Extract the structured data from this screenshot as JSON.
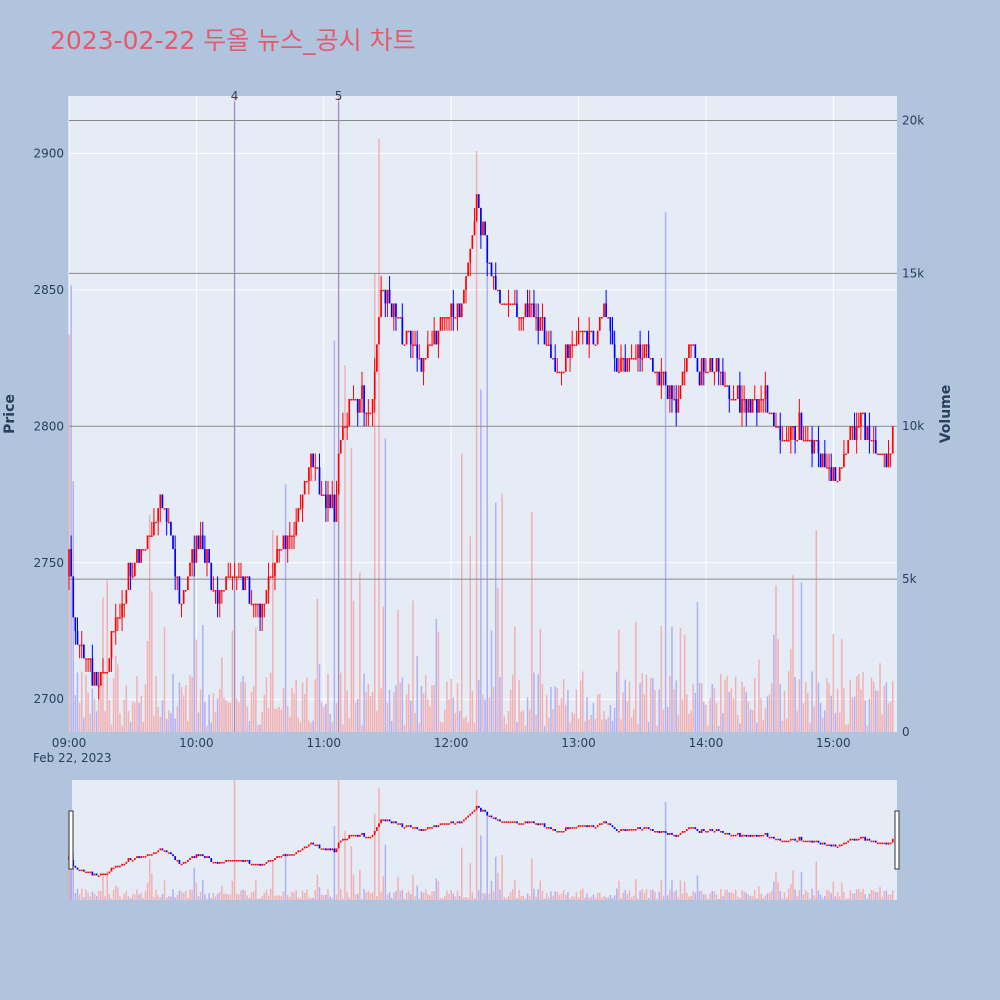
{
  "page": {
    "background": "#b0c4de",
    "plot_background": "#e5ecf6"
  },
  "chart_data": {
    "type": "candlestick",
    "title": "2023-02-22 두올 뉴스_공시 차트",
    "title_color": "#e8596a",
    "ylabel": "Price",
    "y2label": "Volume",
    "price_range": [
      2688,
      2921
    ],
    "volume_range": [
      0,
      20800
    ],
    "y_ticks": [
      "2700",
      "2750",
      "2800",
      "2850",
      "2900"
    ],
    "volume_ticks": [
      "0",
      "5k",
      "10k",
      "15k",
      "20k"
    ],
    "x_ticks": [
      "09:00",
      "10:00",
      "11:00",
      "12:00",
      "13:00",
      "14:00",
      "15:00"
    ],
    "x_date_label": "Feb 22, 2023",
    "time_range": [
      "09:00",
      "15:30"
    ],
    "hlines_volume": [
      5000,
      10000,
      15000,
      20000
    ],
    "news_markers": [
      {
        "label": "4",
        "time": "10:18"
      },
      {
        "label": "5",
        "time": "11:07"
      }
    ],
    "up_color": "#ff0000",
    "down_color": "#0000ff",
    "volume_up_color": "#f4a6a6",
    "volume_down_color": "#a6a6f4",
    "price_path": [
      [
        "09:00",
        2755
      ],
      [
        "09:02",
        2730
      ],
      [
        "09:05",
        2720
      ],
      [
        "09:10",
        2712
      ],
      [
        "09:13",
        2702
      ],
      [
        "09:18",
        2715
      ],
      [
        "09:23",
        2728
      ],
      [
        "09:28",
        2745
      ],
      [
        "09:33",
        2752
      ],
      [
        "09:38",
        2760
      ],
      [
        "09:44",
        2774
      ],
      [
        "09:48",
        2760
      ],
      [
        "09:52",
        2736
      ],
      [
        "09:58",
        2752
      ],
      [
        "10:02",
        2761
      ],
      [
        "10:06",
        2748
      ],
      [
        "10:10",
        2738
      ],
      [
        "10:15",
        2744
      ],
      [
        "10:20",
        2745
      ],
      [
        "10:25",
        2739
      ],
      [
        "10:30",
        2733
      ],
      [
        "10:35",
        2745
      ],
      [
        "10:40",
        2755
      ],
      [
        "10:45",
        2762
      ],
      [
        "10:50",
        2774
      ],
      [
        "10:55",
        2787
      ],
      [
        "11:00",
        2773
      ],
      [
        "11:05",
        2770
      ],
      [
        "11:08",
        2795
      ],
      [
        "11:12",
        2807
      ],
      [
        "11:17",
        2810
      ],
      [
        "11:22",
        2805
      ],
      [
        "11:27",
        2849
      ],
      [
        "11:32",
        2845
      ],
      [
        "11:37",
        2832
      ],
      [
        "11:42",
        2830
      ],
      [
        "11:47",
        2823
      ],
      [
        "11:52",
        2830
      ],
      [
        "11:57",
        2844
      ],
      [
        "12:02",
        2838
      ],
      [
        "12:07",
        2855
      ],
      [
        "12:12",
        2882
      ],
      [
        "12:17",
        2862
      ],
      [
        "12:22",
        2848
      ],
      [
        "12:27",
        2846
      ],
      [
        "12:32",
        2838
      ],
      [
        "12:37",
        2845
      ],
      [
        "12:42",
        2838
      ],
      [
        "12:47",
        2827
      ],
      [
        "12:52",
        2819
      ],
      [
        "12:57",
        2832
      ],
      [
        "13:02",
        2835
      ],
      [
        "13:07",
        2828
      ],
      [
        "13:12",
        2845
      ],
      [
        "13:17",
        2825
      ],
      [
        "13:22",
        2825
      ],
      [
        "13:27",
        2829
      ],
      [
        "13:32",
        2828
      ],
      [
        "13:37",
        2818
      ],
      [
        "13:42",
        2813
      ],
      [
        "13:47",
        2805
      ],
      [
        "13:52",
        2832
      ],
      [
        "13:57",
        2818
      ],
      [
        "14:02",
        2825
      ],
      [
        "14:07",
        2820
      ],
      [
        "14:12",
        2808
      ],
      [
        "14:17",
        2810
      ],
      [
        "14:22",
        2808
      ],
      [
        "14:27",
        2812
      ],
      [
        "14:32",
        2800
      ],
      [
        "14:37",
        2795
      ],
      [
        "14:42",
        2798
      ],
      [
        "14:47",
        2800
      ],
      [
        "14:52",
        2790
      ],
      [
        "14:57",
        2785
      ],
      [
        "15:02",
        2782
      ],
      [
        "15:07",
        2795
      ],
      [
        "15:12",
        2803
      ],
      [
        "15:17",
        2796
      ],
      [
        "15:22",
        2790
      ],
      [
        "15:25",
        2785
      ],
      [
        "15:28",
        2798
      ]
    ]
  }
}
